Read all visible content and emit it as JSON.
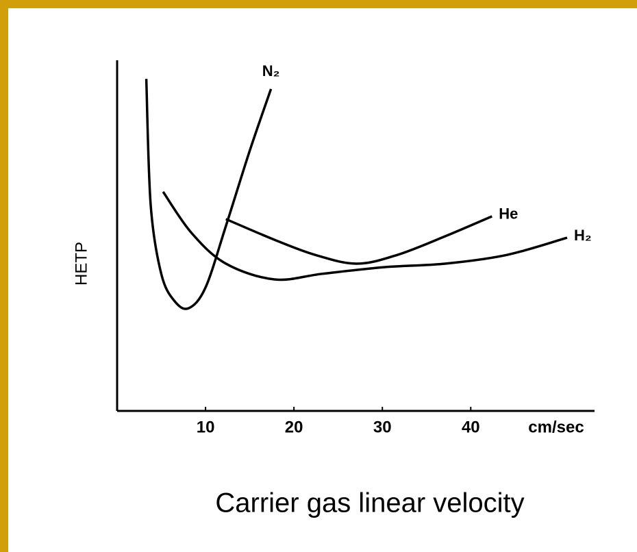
{
  "chart_data": {
    "type": "line",
    "caption": "Carrier gas linear velocity",
    "xlabel": "cm/sec",
    "ylabel": "HETP",
    "xlim": [
      0,
      54
    ],
    "xticks": [
      10,
      20,
      30,
      40
    ],
    "ylim": [
      0,
      100
    ],
    "series": [
      {
        "name": "N₂",
        "color": "#000000",
        "x": [
          3.3,
          3.8,
          5.0,
          6.5,
          8.1,
          10,
          12.3,
          15,
          17.4
        ],
        "values": [
          94.7,
          58.6,
          39,
          31.3,
          29.3,
          35.2,
          52.7,
          74.2,
          91.8
        ]
      },
      {
        "name": "He",
        "color": "#000000",
        "x": [
          12.3,
          17.8,
          22.4,
          27.1,
          31.7,
          37.1,
          42.4
        ],
        "values": [
          54.7,
          48.8,
          44.5,
          42.0,
          44.5,
          49.8,
          55.5
        ]
      },
      {
        "name": "H₂",
        "color": "#000000",
        "x": [
          5.2,
          8.4,
          12.3,
          17.8,
          23.2,
          30.2,
          37.1,
          44.1,
          50.9
        ],
        "values": [
          62.5,
          50.8,
          42,
          37.5,
          39.1,
          41,
          42,
          44.5,
          49.4
        ]
      }
    ]
  }
}
